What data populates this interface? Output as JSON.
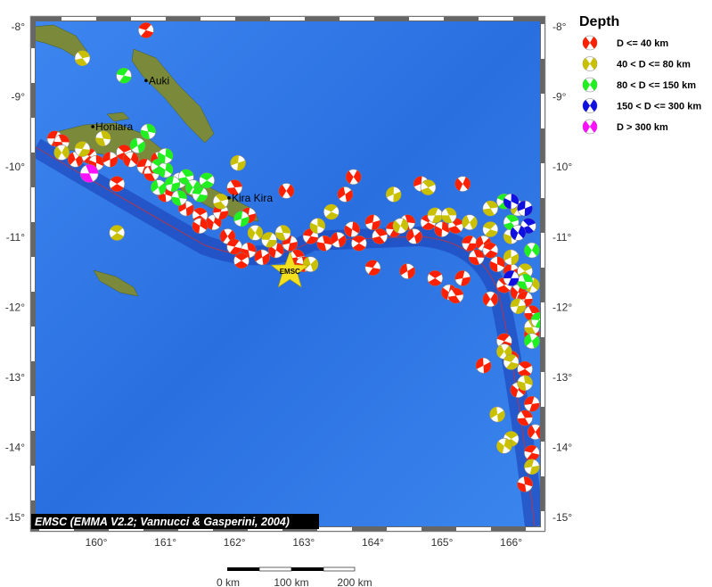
{
  "map": {
    "lon_range": [
      159.1,
      166.5
    ],
    "lat_range": [
      -15.2,
      -7.8
    ],
    "lon_ticks": [
      "160°",
      "161°",
      "162°",
      "163°",
      "164°",
      "165°",
      "166°"
    ],
    "lat_ticks_left": [
      "-8°",
      "-9°",
      "-10°",
      "-11°",
      "-12°",
      "-13°",
      "-14°",
      "-15°"
    ],
    "lat_ticks_right": [
      "-8°",
      "-9°",
      "-10°",
      "-11°",
      "-12°",
      "-13°",
      "-14°",
      "-15°"
    ],
    "credit": "EMSC (EMMA V2.2; Vannucci & Gasperini, 2004)",
    "places": [
      {
        "name": "Auki",
        "lon": 160.72,
        "lat": -8.77
      },
      {
        "name": "Honiara",
        "lon": 159.95,
        "lat": -9.43
      },
      {
        "name": "Kira Kira",
        "lon": 161.92,
        "lat": -10.45
      }
    ],
    "epicenter": {
      "label": "EMSC",
      "lon": 162.8,
      "lat": -11.5,
      "color": "#f5e020"
    },
    "ocean_color": "#2a6fe0",
    "land_color": "#7a8a3a"
  },
  "scale_bar": {
    "labels": [
      "0 km",
      "100 km",
      "200 km"
    ]
  },
  "legend": {
    "title": "Depth",
    "items": [
      {
        "label": "D <= 40 km",
        "color": "#ff2000",
        "cls": "r"
      },
      {
        "label": "40 < D <= 80 km",
        "color": "#c8c000",
        "cls": "y"
      },
      {
        "label": "80 < D <= 150 km",
        "color": "#20f020",
        "cls": "g"
      },
      {
        "label": "150 < D <= 300 km",
        "color": "#1010e0",
        "cls": "b"
      },
      {
        "label": "D > 300 km",
        "color": "#ff10ff",
        "cls": "m"
      }
    ]
  },
  "events": [
    [
      159.4,
      -9.6,
      "r"
    ],
    [
      159.5,
      -9.65,
      "r"
    ],
    [
      159.7,
      -9.9,
      "r"
    ],
    [
      159.9,
      -9.85,
      "r"
    ],
    [
      160.0,
      -9.95,
      "r"
    ],
    [
      160.2,
      -9.9,
      "r"
    ],
    [
      160.4,
      -9.8,
      "r"
    ],
    [
      160.5,
      -9.9,
      "r"
    ],
    [
      160.7,
      -10.0,
      "r"
    ],
    [
      160.8,
      -10.1,
      "r"
    ],
    [
      160.9,
      -9.9,
      "r"
    ],
    [
      160.72,
      -8.05,
      "r"
    ],
    [
      161.0,
      -10.4,
      "r"
    ],
    [
      161.3,
      -10.6,
      "r"
    ],
    [
      161.5,
      -10.7,
      "r"
    ],
    [
      161.7,
      -10.8,
      "r"
    ],
    [
      161.8,
      -10.65,
      "r"
    ],
    [
      162.0,
      -10.3,
      "r"
    ],
    [
      161.9,
      -11.0,
      "r"
    ],
    [
      162.0,
      -11.15,
      "r"
    ],
    [
      162.2,
      -11.2,
      "r"
    ],
    [
      162.4,
      -11.3,
      "r"
    ],
    [
      162.1,
      -11.35,
      "r"
    ],
    [
      162.6,
      -11.2,
      "r"
    ],
    [
      162.8,
      -11.1,
      "r"
    ],
    [
      162.9,
      -11.3,
      "r"
    ],
    [
      162.75,
      -10.35,
      "r"
    ],
    [
      163.1,
      -11.0,
      "r"
    ],
    [
      163.3,
      -11.1,
      "r"
    ],
    [
      163.5,
      -11.05,
      "r"
    ],
    [
      163.8,
      -11.1,
      "r"
    ],
    [
      163.7,
      -10.9,
      "r"
    ],
    [
      164.0,
      -10.8,
      "r"
    ],
    [
      164.1,
      -11.0,
      "r"
    ],
    [
      163.72,
      -10.15,
      "r"
    ],
    [
      164.3,
      -10.9,
      "r"
    ],
    [
      164.5,
      -10.8,
      "r"
    ],
    [
      164.6,
      -11.0,
      "r"
    ],
    [
      164.8,
      -10.8,
      "r"
    ],
    [
      165.0,
      -10.9,
      "r"
    ],
    [
      164.7,
      -10.25,
      "r"
    ],
    [
      165.2,
      -10.85,
      "r"
    ],
    [
      165.3,
      -10.25,
      "r"
    ],
    [
      165.4,
      -11.1,
      "r"
    ],
    [
      165.5,
      -11.3,
      "r"
    ],
    [
      165.6,
      -11.1,
      "r"
    ],
    [
      165.7,
      -11.2,
      "r"
    ],
    [
      165.8,
      -11.4,
      "r"
    ],
    [
      166.0,
      -11.5,
      "r"
    ],
    [
      165.9,
      -11.7,
      "r"
    ],
    [
      166.1,
      -11.8,
      "r"
    ],
    [
      166.2,
      -11.9,
      "r"
    ],
    [
      166.3,
      -12.1,
      "r"
    ],
    [
      166.3,
      -12.4,
      "r"
    ],
    [
      165.9,
      -12.5,
      "r"
    ],
    [
      166.0,
      -12.75,
      "r"
    ],
    [
      165.6,
      -12.85,
      "r"
    ],
    [
      166.2,
      -12.9,
      "r"
    ],
    [
      166.1,
      -13.2,
      "r"
    ],
    [
      166.3,
      -13.4,
      "r"
    ],
    [
      166.2,
      -13.6,
      "r"
    ],
    [
      166.35,
      -13.8,
      "r"
    ],
    [
      166.3,
      -14.1,
      "r"
    ],
    [
      166.2,
      -14.55,
      "r"
    ],
    [
      164.5,
      -11.5,
      "r"
    ],
    [
      164.9,
      -11.6,
      "r"
    ],
    [
      165.1,
      -11.8,
      "r"
    ],
    [
      165.3,
      -11.6,
      "r"
    ],
    [
      165.2,
      -11.85,
      "r"
    ],
    [
      165.7,
      -11.9,
      "r"
    ],
    [
      164.0,
      -11.45,
      "r"
    ],
    [
      163.0,
      -11.4,
      "r"
    ],
    [
      163.6,
      -10.4,
      "r"
    ],
    [
      160.3,
      -10.25,
      "r"
    ],
    [
      161.5,
      -10.85,
      "r"
    ],
    [
      162.2,
      -10.7,
      "r"
    ],
    [
      159.8,
      -8.45,
      "y"
    ],
    [
      159.5,
      -9.8,
      "y"
    ],
    [
      159.8,
      -9.75,
      "y"
    ],
    [
      160.1,
      -9.6,
      "y"
    ],
    [
      160.6,
      -9.7,
      "y"
    ],
    [
      160.3,
      -10.95,
      "y"
    ],
    [
      161.2,
      -10.2,
      "y"
    ],
    [
      162.05,
      -9.95,
      "y"
    ],
    [
      161.8,
      -10.5,
      "y"
    ],
    [
      162.3,
      -10.95,
      "y"
    ],
    [
      162.5,
      -11.05,
      "y"
    ],
    [
      162.7,
      -10.95,
      "y"
    ],
    [
      163.1,
      -11.4,
      "y"
    ],
    [
      163.4,
      -10.65,
      "y"
    ],
    [
      163.2,
      -10.85,
      "y"
    ],
    [
      164.3,
      -10.4,
      "y"
    ],
    [
      164.8,
      -10.3,
      "y"
    ],
    [
      164.4,
      -10.85,
      "y"
    ],
    [
      164.9,
      -10.7,
      "y"
    ],
    [
      165.1,
      -10.7,
      "y"
    ],
    [
      165.4,
      -10.8,
      "y"
    ],
    [
      165.7,
      -10.9,
      "y"
    ],
    [
      166.0,
      -11.0,
      "y"
    ],
    [
      166.0,
      -11.3,
      "y"
    ],
    [
      166.2,
      -11.5,
      "y"
    ],
    [
      166.3,
      -11.7,
      "y"
    ],
    [
      166.1,
      -12.0,
      "y"
    ],
    [
      166.3,
      -12.3,
      "y"
    ],
    [
      165.9,
      -12.65,
      "y"
    ],
    [
      166.0,
      -12.8,
      "y"
    ],
    [
      166.2,
      -13.1,
      "y"
    ],
    [
      165.8,
      -13.55,
      "y"
    ],
    [
      166.0,
      -13.9,
      "y"
    ],
    [
      165.9,
      -14.0,
      "y"
    ],
    [
      166.3,
      -14.3,
      "y"
    ],
    [
      165.7,
      -10.6,
      "y"
    ],
    [
      166.1,
      -10.6,
      "y"
    ],
    [
      160.4,
      -8.7,
      "g"
    ],
    [
      160.75,
      -9.5,
      "g"
    ],
    [
      160.6,
      -9.7,
      "g"
    ],
    [
      160.9,
      -10.0,
      "g"
    ],
    [
      161.0,
      -10.05,
      "g"
    ],
    [
      161.1,
      -10.25,
      "g"
    ],
    [
      161.3,
      -10.15,
      "g"
    ],
    [
      161.4,
      -10.3,
      "g"
    ],
    [
      161.5,
      -10.4,
      "g"
    ],
    [
      161.2,
      -10.45,
      "g"
    ],
    [
      160.9,
      -10.3,
      "g"
    ],
    [
      161.6,
      -10.2,
      "g"
    ],
    [
      161.0,
      -9.85,
      "g"
    ],
    [
      162.1,
      -10.75,
      "g"
    ],
    [
      166.0,
      -10.8,
      "g"
    ],
    [
      166.3,
      -11.2,
      "g"
    ],
    [
      166.4,
      -12.2,
      "g"
    ],
    [
      166.2,
      -11.65,
      "g"
    ],
    [
      166.3,
      -12.5,
      "g"
    ],
    [
      165.9,
      -10.5,
      "g"
    ],
    [
      166.0,
      -10.5,
      "b"
    ],
    [
      166.2,
      -10.6,
      "b"
    ],
    [
      166.25,
      -10.85,
      "b"
    ],
    [
      166.1,
      -10.95,
      "b"
    ],
    [
      166.0,
      -11.6,
      "b"
    ],
    [
      159.9,
      -10.1,
      "m"
    ]
  ]
}
